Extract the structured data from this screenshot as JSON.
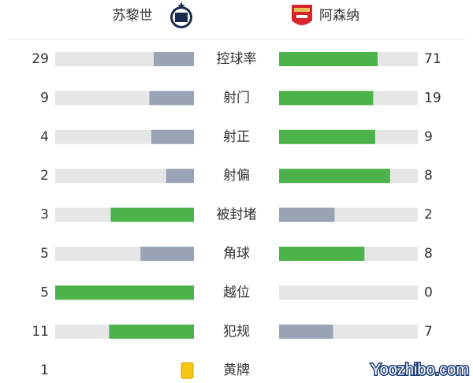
{
  "header": {
    "home_team": "苏黎世",
    "away_team": "阿森纳"
  },
  "bar_colors": {
    "higher": "#4cb34a",
    "lower": "#9aa3b5",
    "track": "#e6e6e6"
  },
  "stats": [
    {
      "label": "控球率",
      "home": 29,
      "away": 71
    },
    {
      "label": "射门",
      "home": 9,
      "away": 19
    },
    {
      "label": "射正",
      "home": 4,
      "away": 9
    },
    {
      "label": "射偏",
      "home": 2,
      "away": 8
    },
    {
      "label": "被封堵",
      "home": 3,
      "away": 2
    },
    {
      "label": "角球",
      "home": 5,
      "away": 8
    },
    {
      "label": "越位",
      "home": 5,
      "away": 0
    },
    {
      "label": "犯规",
      "home": 11,
      "away": 7
    },
    {
      "label": "黄牌",
      "home": 1
    }
  ],
  "watermark": "Yoozhibo.com"
}
